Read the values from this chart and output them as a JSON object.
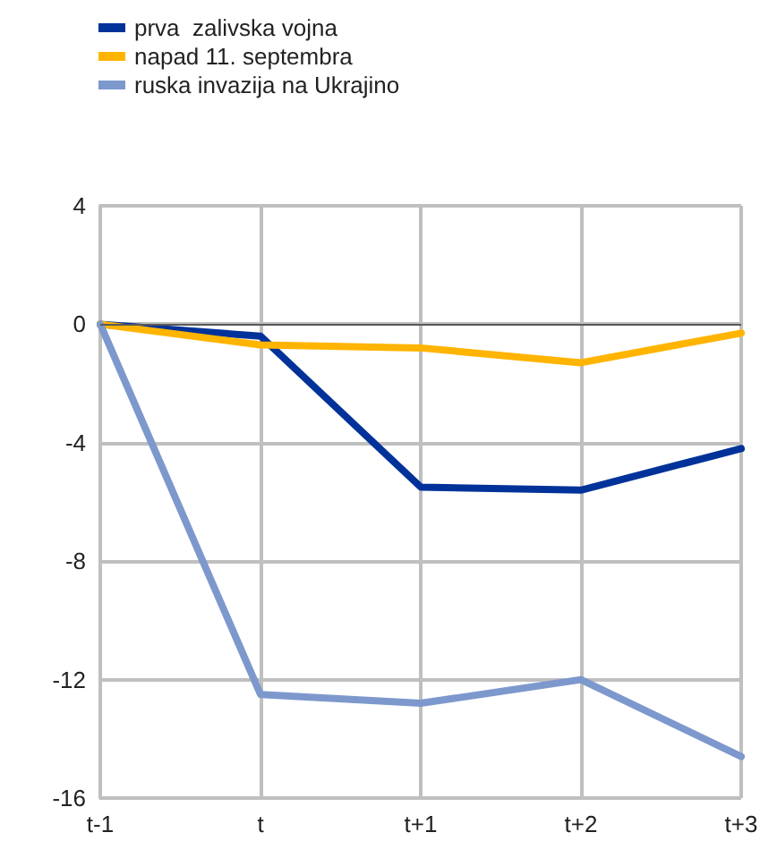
{
  "chart_data": {
    "type": "line",
    "categories": [
      "t-1",
      "t",
      "t+1",
      "t+2",
      "t+3"
    ],
    "series": [
      {
        "name": "prva  zalivska vojna",
        "color": "#003299",
        "values": [
          0,
          -0.4,
          -5.5,
          -5.6,
          -4.2
        ]
      },
      {
        "name": "napad 11. septembra",
        "color": "#ffb400",
        "values": [
          0,
          -0.7,
          -0.8,
          -1.3,
          -0.3
        ]
      },
      {
        "name": "ruska invazija na Ukrajino",
        "color": "#7d98cc",
        "values": [
          0,
          -12.5,
          -12.8,
          -12.0,
          -14.6
        ]
      }
    ],
    "ylim": [
      -16,
      4
    ],
    "yticks": [
      -16,
      -12,
      -8,
      -4,
      0,
      4
    ],
    "grid": true,
    "legend": "top left",
    "marker": "none",
    "line_style": "solid",
    "ref_lines": [
      {
        "axis": "y",
        "value": 0,
        "color": "#595959"
      }
    ]
  }
}
